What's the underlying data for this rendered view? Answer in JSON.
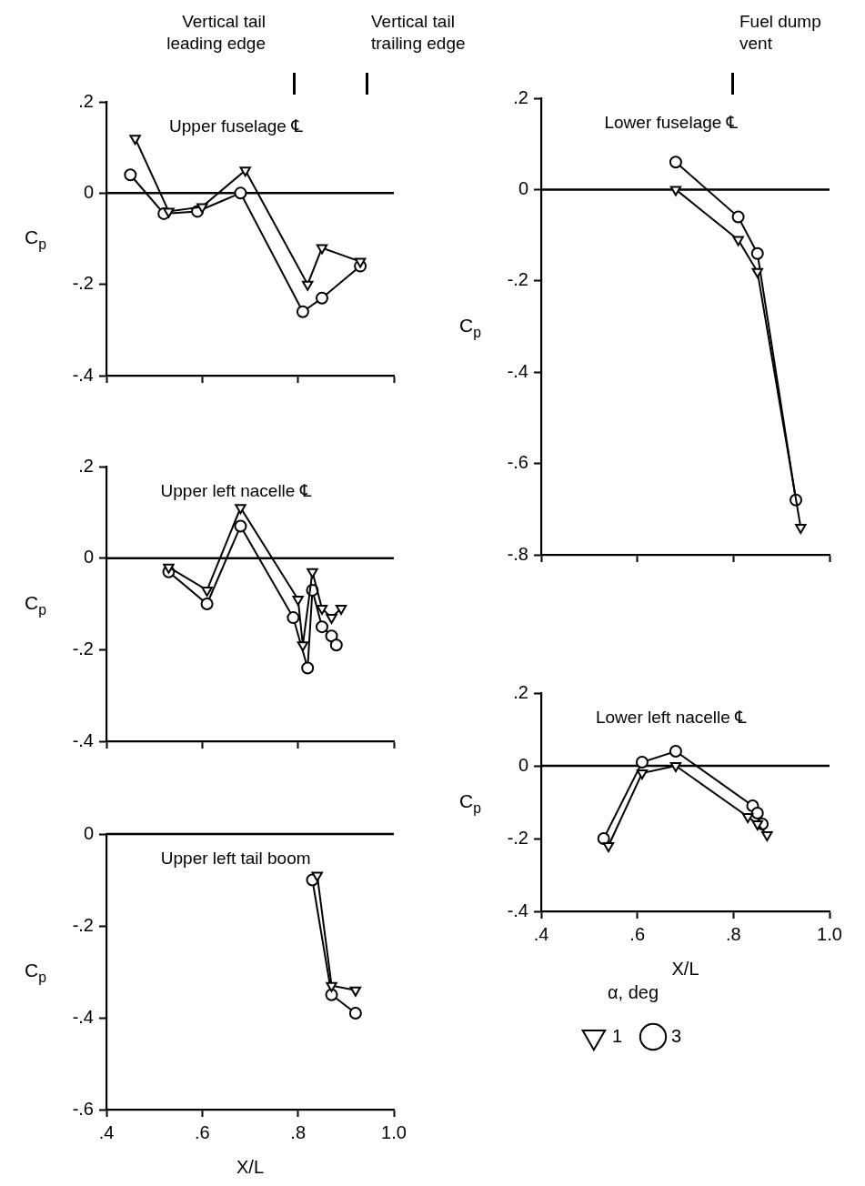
{
  "chart_data": [
    {
      "type": "line",
      "title": "Upper fuselage ℄",
      "ylabel": "C$_{p}$",
      "xlim": [
        0.4,
        1.0
      ],
      "ylim": [
        -0.4,
        0.2
      ],
      "xticks": [
        {
          "value": 0.4,
          "label": null
        },
        {
          "value": 0.6,
          "label": null
        },
        {
          "value": 0.8,
          "label": null
        },
        {
          "value": 1.0,
          "label": null
        }
      ],
      "yticks": [
        {
          "value": 0.2,
          "label": ".2"
        },
        {
          "value": 0,
          "label": "0"
        },
        {
          "value": -0.2,
          "label": "-.2"
        },
        {
          "value": -0.4,
          "label": "-.4"
        }
      ],
      "tick_labels": "y",
      "ref_lines": [
        {
          "axis": "y",
          "value": 0
        }
      ],
      "annotations": [
        "Vertical tail leading edge",
        "Vertical tail trailing edge"
      ],
      "series": [
        {
          "color": "#000000",
          "marker": "triangle",
          "x": [
            0.46,
            0.53,
            0.6,
            0.69,
            0.82,
            0.85,
            0.93
          ],
          "values": [
            0.12,
            -0.04,
            -0.03,
            0.05,
            -0.2,
            -0.12,
            -0.15
          ]
        },
        {
          "color": "#000000",
          "marker": "circle",
          "x": [
            0.45,
            0.52,
            0.59,
            0.68,
            0.81,
            0.85,
            0.93
          ],
          "values": [
            0.04,
            -0.045,
            -0.04,
            0.0,
            -0.26,
            -0.23,
            -0.16
          ]
        }
      ]
    },
    {
      "type": "line",
      "title": "Upper left nacelle ℄",
      "ylabel": "C$_{p}$",
      "xlim": [
        0.4,
        1.0
      ],
      "ylim": [
        -0.4,
        0.2
      ],
      "xticks": [
        {
          "value": 0.4,
          "label": null
        },
        {
          "value": 0.6,
          "label": null
        },
        {
          "value": 0.8,
          "label": null
        },
        {
          "value": 1.0,
          "label": null
        }
      ],
      "yticks": [
        {
          "value": 0.2,
          "label": ".2"
        },
        {
          "value": 0,
          "label": "0"
        },
        {
          "value": -0.2,
          "label": "-.2"
        },
        {
          "value": -0.4,
          "label": "-.4"
        }
      ],
      "tick_labels": "y",
      "ref_lines": [
        {
          "axis": "y",
          "value": 0
        }
      ],
      "series": [
        {
          "color": "#000000",
          "marker": "triangle",
          "x": [
            0.53,
            0.61,
            0.68,
            0.8,
            0.81,
            0.83,
            0.85,
            0.87,
            0.89
          ],
          "values": [
            -0.02,
            -0.07,
            0.11,
            -0.09,
            -0.19,
            -0.03,
            -0.11,
            -0.13,
            -0.11
          ]
        },
        {
          "color": "#000000",
          "marker": "circle",
          "x": [
            0.53,
            0.61,
            0.68,
            0.79,
            0.82,
            0.83,
            0.85,
            0.87,
            0.88
          ],
          "values": [
            -0.03,
            -0.1,
            0.07,
            -0.13,
            -0.24,
            -0.07,
            -0.15,
            -0.17,
            -0.19
          ]
        }
      ]
    },
    {
      "type": "line",
      "title": "Upper left tail boom",
      "ylabel": "C$_{p}$",
      "xlabel": "X/L",
      "xlim": [
        0.4,
        1.0
      ],
      "ylim": [
        -0.6,
        0
      ],
      "xticks": [
        {
          "value": 0.4,
          "label": ".4"
        },
        {
          "value": 0.6,
          "label": ".6"
        },
        {
          "value": 0.8,
          "label": ".8"
        },
        {
          "value": 1.0,
          "label": "1.0"
        }
      ],
      "yticks": [
        {
          "value": 0,
          "label": "0"
        },
        {
          "value": -0.2,
          "label": "-.2"
        },
        {
          "value": -0.4,
          "label": "-.4"
        },
        {
          "value": -0.6,
          "label": "-.6"
        }
      ],
      "ref_lines": [
        {
          "axis": "y",
          "value": 0
        }
      ],
      "series": [
        {
          "color": "#000000",
          "marker": "triangle",
          "x": [
            0.84,
            0.87,
            0.92
          ],
          "values": [
            -0.09,
            -0.33,
            -0.34
          ]
        },
        {
          "color": "#000000",
          "marker": "circle",
          "x": [
            0.83,
            0.87,
            0.92
          ],
          "values": [
            -0.1,
            -0.35,
            -0.39
          ]
        }
      ]
    },
    {
      "type": "line",
      "title": "Lower fuselage ℄",
      "ylabel": "C$_{p}$",
      "xlim": [
        0.4,
        1.0
      ],
      "ylim": [
        -0.8,
        0.2
      ],
      "xticks": [
        {
          "value": 0.4,
          "label": null
        },
        {
          "value": 0.6,
          "label": null
        },
        {
          "value": 0.8,
          "label": null
        },
        {
          "value": 1.0,
          "label": null
        }
      ],
      "yticks": [
        {
          "value": 0.2,
          "label": ".2"
        },
        {
          "value": 0,
          "label": "0"
        },
        {
          "value": -0.2,
          "label": "-.2"
        },
        {
          "value": -0.4,
          "label": "-.4"
        },
        {
          "value": -0.6,
          "label": "-.6"
        },
        {
          "value": -0.8,
          "label": "-.8"
        }
      ],
      "tick_labels": "y",
      "ref_lines": [
        {
          "axis": "y",
          "value": 0
        }
      ],
      "annotations": [
        "Fuel dump vent"
      ],
      "series": [
        {
          "color": "#000000",
          "marker": "triangle",
          "x": [
            0.68,
            0.81,
            0.85,
            0.94
          ],
          "values": [
            0.0,
            -0.11,
            -0.18,
            -0.74
          ]
        },
        {
          "color": "#000000",
          "marker": "circle",
          "x": [
            0.68,
            0.81,
            0.85,
            0.93
          ],
          "values": [
            0.06,
            -0.06,
            -0.14,
            -0.68
          ]
        }
      ]
    },
    {
      "type": "line",
      "title": "Lower left nacelle ℄",
      "ylabel": "C$_{p}$",
      "xlabel": "X/L",
      "xlim": [
        0.4,
        1.0
      ],
      "ylim": [
        -0.4,
        0.2
      ],
      "xticks": [
        {
          "value": 0.4,
          "label": ".4"
        },
        {
          "value": 0.6,
          "label": ".6"
        },
        {
          "value": 0.8,
          "label": ".8"
        },
        {
          "value": 1.0,
          "label": "1.0"
        }
      ],
      "yticks": [
        {
          "value": 0.2,
          "label": ".2"
        },
        {
          "value": 0,
          "label": "0"
        },
        {
          "value": -0.2,
          "label": "-.2"
        },
        {
          "value": -0.4,
          "label": "-.4"
        }
      ],
      "ref_lines": [
        {
          "axis": "y",
          "value": 0
        }
      ],
      "legend": "bottom",
      "legend_title": "α, deg",
      "series": [
        {
          "name": "1",
          "color": "#000000",
          "marker": "triangle",
          "x": [
            0.54,
            0.61,
            0.68,
            0.83,
            0.85,
            0.87
          ],
          "values": [
            -0.22,
            -0.02,
            0.0,
            -0.14,
            -0.16,
            -0.19
          ]
        },
        {
          "name": "3",
          "color": "#000000",
          "marker": "circle",
          "x": [
            0.53,
            0.61,
            0.68,
            0.84,
            0.85,
            0.86
          ],
          "values": [
            -0.2,
            0.01,
            0.04,
            -0.11,
            -0.13,
            -0.16
          ]
        }
      ]
    }
  ]
}
